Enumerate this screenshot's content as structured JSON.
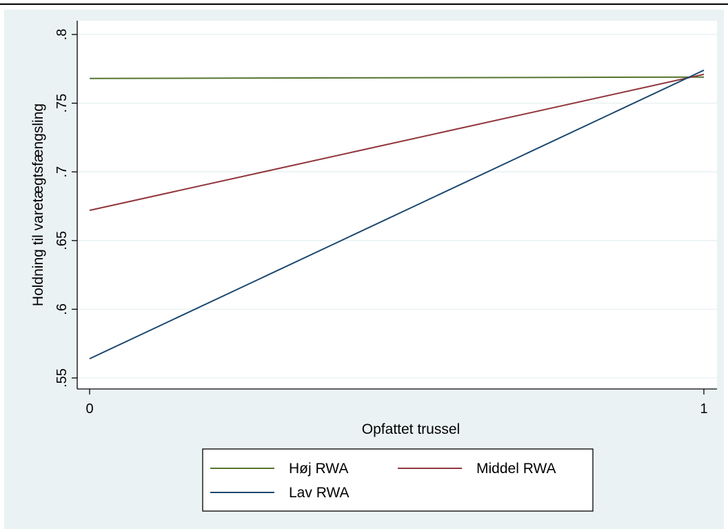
{
  "caption_fragment": "",
  "colors": {
    "figure_background": "#eaf2f3",
    "plot_background": "#ffffff",
    "grid": "#eaf2f3",
    "hoj_rwa": "#55752f",
    "middel_rwa": "#90353b",
    "lav_rwa": "#1a476f"
  },
  "chart_data": {
    "type": "line",
    "title": "",
    "xlabel": "Opfattet trussel",
    "ylabel": "Holdning til varetægtsfængsling",
    "xlim": [
      0,
      1
    ],
    "ylim": [
      0.55,
      0.8
    ],
    "x_ticks": [
      0,
      1
    ],
    "x_tick_labels": [
      "0",
      "1"
    ],
    "y_ticks": [
      0.55,
      0.6,
      0.65,
      0.7,
      0.75,
      0.8
    ],
    "y_tick_labels": [
      ".55",
      ".6",
      ".65",
      ".7",
      ".75",
      ".8"
    ],
    "grid": true,
    "legend_position": "bottom",
    "series": [
      {
        "name": "Høj RWA",
        "color": "#55752f",
        "x": [
          0,
          1
        ],
        "y": [
          0.768,
          0.769
        ]
      },
      {
        "name": "Middel RWA",
        "color": "#90353b",
        "x": [
          0,
          1
        ],
        "y": [
          0.672,
          0.771
        ]
      },
      {
        "name": "Lav RWA",
        "color": "#1a476f",
        "x": [
          0,
          1
        ],
        "y": [
          0.564,
          0.774
        ]
      }
    ]
  }
}
